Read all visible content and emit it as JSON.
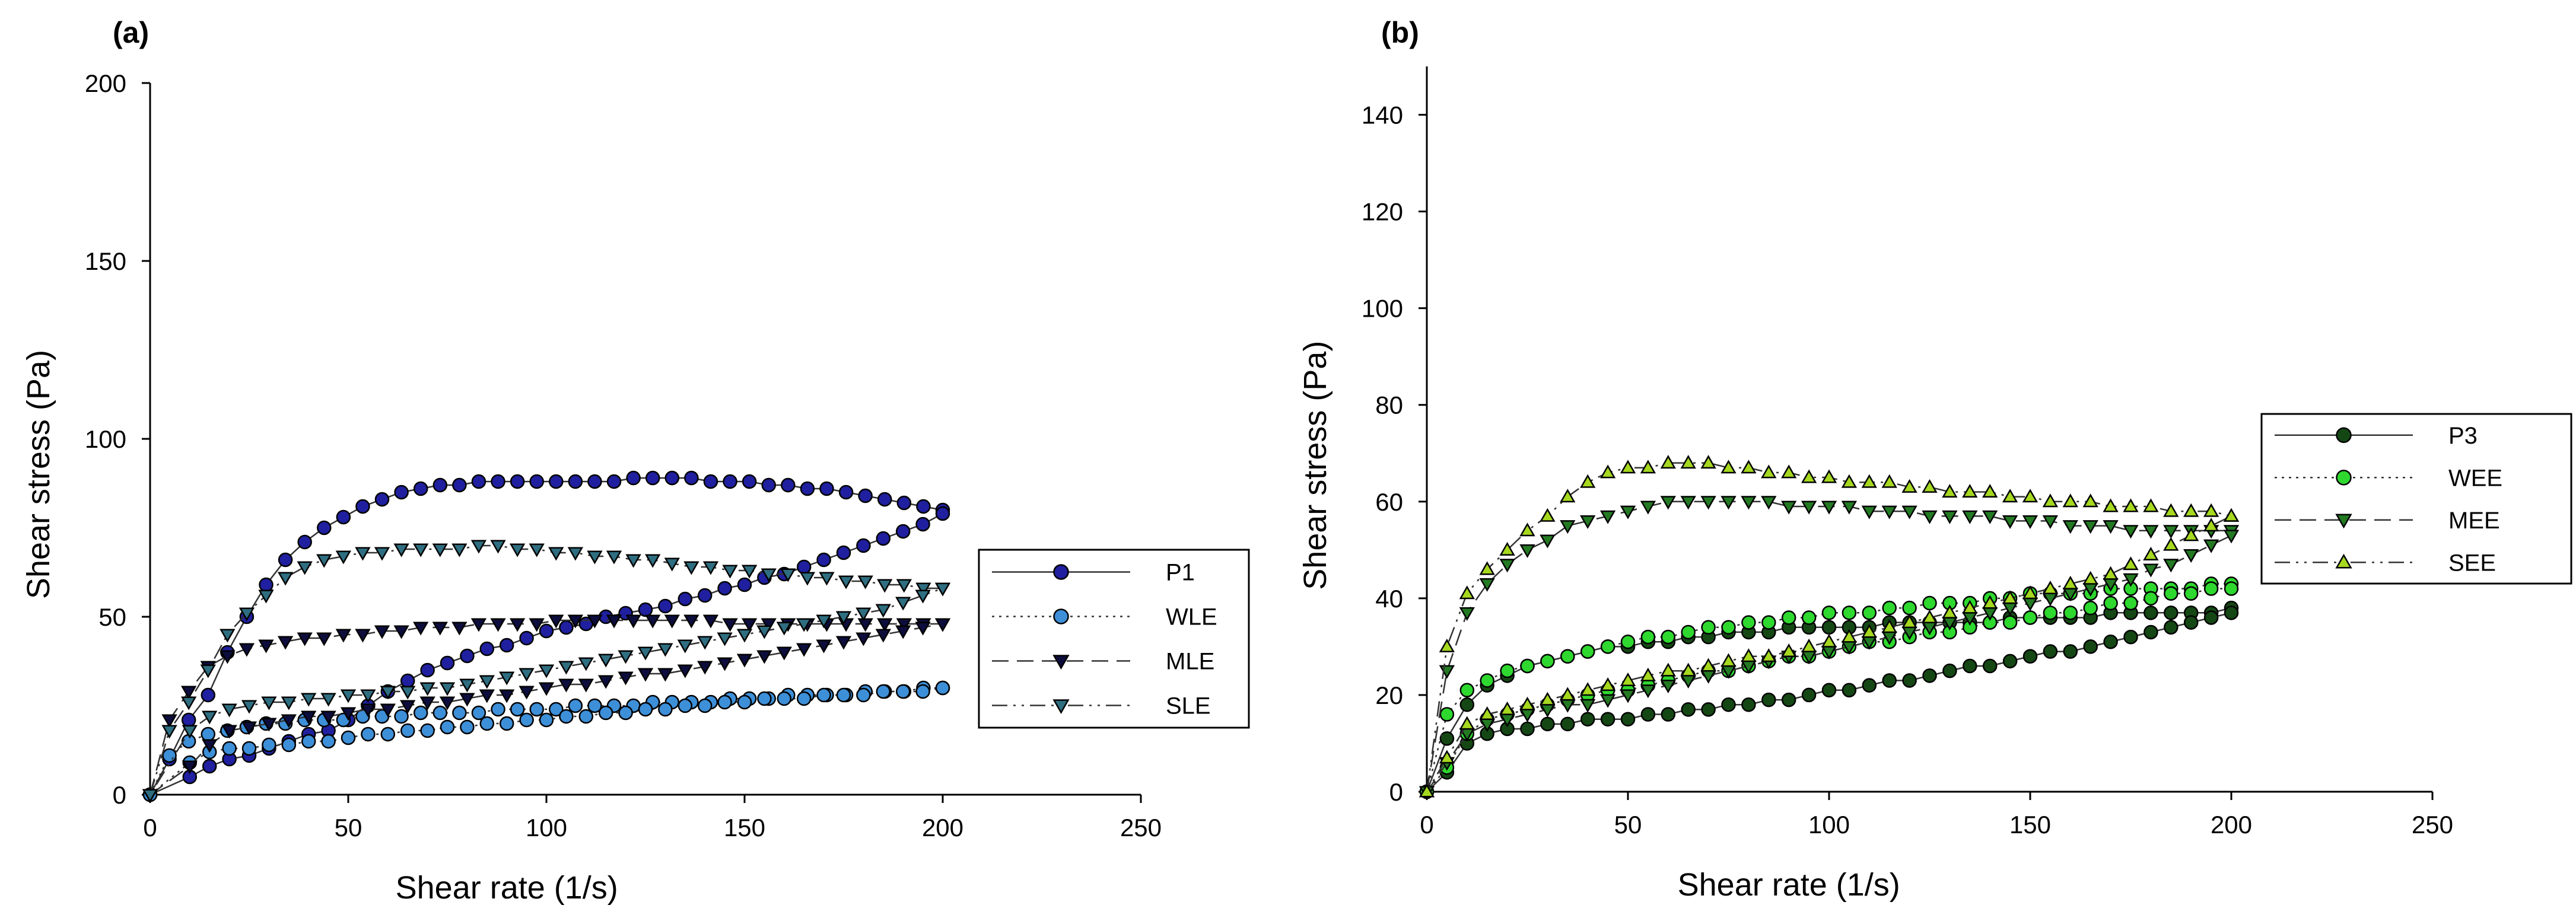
{
  "chart_data": [
    {
      "panel": "(a)",
      "type": "scatter",
      "xlabel": "Shear rate (1/s)",
      "ylabel": "Shear stress (Pa)",
      "xlim": [
        0,
        250
      ],
      "ylim": [
        0,
        200
      ],
      "xticks": [
        "0",
        "50",
        "100",
        "150",
        "200",
        "250"
      ],
      "yticks": [
        "0",
        "50",
        "100",
        "150",
        "200"
      ],
      "legend_position": "right",
      "series": [
        {
          "name": "P1",
          "marker": "circle",
          "color": "#1f1f9f",
          "line": "solid",
          "up_y": [
            0,
            10,
            21,
            28,
            40,
            50,
            59,
            66,
            71,
            75,
            78,
            81,
            83,
            85,
            86,
            87,
            87,
            88,
            88,
            88,
            88,
            88,
            88,
            88,
            88,
            89,
            89,
            89,
            89,
            88,
            88,
            88,
            87,
            87,
            86,
            86,
            85,
            84,
            83,
            82,
            81,
            80
          ],
          "down_y": [
            79,
            76,
            74,
            72,
            70,
            68,
            66,
            64,
            62,
            61,
            59,
            58,
            56,
            55,
            53,
            52,
            51,
            50,
            48,
            47,
            46,
            44,
            42,
            41,
            39,
            37,
            35,
            32,
            29,
            25,
            21,
            18,
            17,
            15,
            13,
            11,
            10,
            8,
            5
          ]
        },
        {
          "name": "WLE",
          "marker": "circle",
          "color": "#3d8fd8",
          "line": "dotted",
          "up_y": [
            0,
            11,
            15,
            17,
            18,
            19,
            20,
            20,
            21,
            21,
            21,
            22,
            22,
            22,
            23,
            23,
            23,
            23,
            24,
            24,
            24,
            24,
            25,
            25,
            25,
            25,
            26,
            26,
            26,
            26,
            27,
            27,
            27,
            28,
            28,
            28,
            28,
            29,
            29,
            29,
            30,
            30
          ],
          "down_y": [
            30,
            29,
            29,
            29,
            28,
            28,
            28,
            27,
            27,
            27,
            26,
            26,
            25,
            25,
            24,
            24,
            23,
            23,
            22,
            22,
            21,
            21,
            20,
            20,
            19,
            19,
            18,
            18,
            17,
            17,
            16,
            15,
            15,
            14,
            14,
            13,
            13,
            12,
            9
          ]
        },
        {
          "name": "MLE",
          "marker": "triangle-down",
          "color": "#0d0d3d",
          "line": "dashed",
          "up_y": [
            0,
            21,
            29,
            36,
            39,
            41,
            42,
            43,
            44,
            44,
            45,
            45,
            46,
            46,
            47,
            47,
            47,
            48,
            48,
            48,
            48,
            49,
            49,
            49,
            49,
            49,
            49,
            49,
            49,
            49,
            48,
            48,
            48,
            48,
            48,
            48,
            48,
            48,
            48,
            48,
            48,
            48
          ],
          "down_y": [
            48,
            47,
            46,
            45,
            44,
            43,
            42,
            41,
            40,
            39,
            38,
            37,
            36,
            35,
            34,
            34,
            33,
            32,
            31,
            31,
            30,
            29,
            28,
            28,
            27,
            26,
            26,
            25,
            24,
            24,
            23,
            22,
            22,
            21,
            20,
            19,
            18,
            14,
            8
          ]
        },
        {
          "name": "SLE",
          "marker": "triangle-down",
          "color": "#2e6e80",
          "line": "dashdotdot",
          "up_y": [
            0,
            18,
            26,
            35,
            45,
            51,
            56,
            61,
            64,
            66,
            67,
            68,
            68,
            69,
            69,
            69,
            69,
            70,
            70,
            69,
            69,
            68,
            68,
            67,
            67,
            66,
            66,
            65,
            64,
            64,
            63,
            63,
            62,
            62,
            61,
            61,
            60,
            60,
            59,
            59,
            58,
            58
          ],
          "down_y": [
            58,
            56,
            54,
            52,
            51,
            50,
            49,
            48,
            47,
            46,
            45,
            44,
            43,
            42,
            41,
            40,
            39,
            38,
            37,
            36,
            35,
            34,
            33,
            32,
            31,
            30,
            30,
            29,
            29,
            28,
            28,
            27,
            27,
            26,
            26,
            25,
            24,
            22,
            18
          ]
        }
      ]
    },
    {
      "panel": "(b)",
      "type": "scatter",
      "xlabel": "Shear rate (1/s)",
      "ylabel": "Shear stress (Pa)",
      "xlim": [
        0,
        250
      ],
      "ylim": [
        0,
        150
      ],
      "xticks": [
        "0",
        "50",
        "100",
        "150",
        "200",
        "250"
      ],
      "yticks": [
        "0",
        "20",
        "40",
        "60",
        "80",
        "100",
        "120",
        "140"
      ],
      "legend_position": "right",
      "series": [
        {
          "name": "P3",
          "marker": "circle",
          "color": "#144714",
          "line": "solid",
          "up_y": [
            0,
            11,
            18,
            22,
            24,
            26,
            27,
            28,
            29,
            30,
            30,
            31,
            31,
            32,
            32,
            33,
            33,
            33,
            34,
            34,
            34,
            34,
            34,
            35,
            35,
            35,
            35,
            35,
            35,
            36,
            36,
            36,
            36,
            36,
            37,
            37,
            37,
            37,
            37,
            37,
            38
          ],
          "down_y": [
            37,
            36,
            35,
            34,
            33,
            32,
            31,
            30,
            29,
            29,
            28,
            27,
            26,
            26,
            25,
            24,
            23,
            23,
            22,
            21,
            21,
            20,
            19,
            19,
            18,
            18,
            17,
            17,
            16,
            16,
            15,
            15,
            15,
            14,
            14,
            13,
            13,
            12,
            10,
            4
          ]
        },
        {
          "name": "WEE",
          "marker": "circle",
          "color": "#2ed82e",
          "line": "dotted",
          "up_y": [
            0,
            16,
            21,
            23,
            25,
            26,
            27,
            28,
            29,
            30,
            31,
            32,
            32,
            33,
            34,
            34,
            35,
            35,
            36,
            36,
            37,
            37,
            37,
            38,
            38,
            39,
            39,
            39,
            40,
            40,
            41,
            41,
            41,
            41,
            42,
            42,
            42,
            42,
            42,
            43,
            43
          ],
          "down_y": [
            42,
            42,
            41,
            41,
            40,
            39,
            39,
            38,
            37,
            37,
            36,
            35,
            35,
            34,
            33,
            33,
            32,
            31,
            31,
            30,
            29,
            28,
            28,
            27,
            26,
            25,
            25,
            24,
            23,
            22,
            21,
            21,
            20,
            19,
            18,
            17,
            16,
            15,
            12,
            5
          ]
        },
        {
          "name": "MEE",
          "marker": "triangle-down",
          "color": "#237a23",
          "line": "dashed",
          "up_y": [
            0,
            25,
            37,
            43,
            47,
            50,
            52,
            55,
            56,
            57,
            58,
            59,
            60,
            60,
            60,
            60,
            60,
            60,
            59,
            59,
            59,
            59,
            58,
            58,
            58,
            57,
            57,
            57,
            57,
            56,
            56,
            56,
            55,
            55,
            55,
            54,
            54,
            54,
            54,
            54,
            54
          ],
          "down_y": [
            53,
            51,
            49,
            47,
            46,
            44,
            43,
            42,
            41,
            40,
            39,
            38,
            37,
            36,
            35,
            34,
            33,
            32,
            31,
            30,
            29,
            28,
            28,
            27,
            26,
            25,
            24,
            23,
            22,
            21,
            20,
            19,
            18,
            18,
            17,
            16,
            15,
            14,
            12,
            6
          ]
        },
        {
          "name": "SEE",
          "marker": "triangle-up",
          "color": "#a6d81f",
          "line": "dashdotdot",
          "up_y": [
            0,
            30,
            41,
            46,
            50,
            54,
            57,
            61,
            64,
            66,
            67,
            67,
            68,
            68,
            68,
            67,
            67,
            66,
            66,
            65,
            65,
            64,
            64,
            64,
            63,
            63,
            62,
            62,
            62,
            61,
            61,
            60,
            60,
            60,
            59,
            59,
            59,
            58,
            58,
            58,
            57
          ],
          "down_y": [
            57,
            55,
            53,
            51,
            49,
            47,
            45,
            44,
            43,
            42,
            41,
            40,
            39,
            38,
            37,
            36,
            35,
            34,
            33,
            32,
            31,
            30,
            29,
            28,
            28,
            27,
            26,
            25,
            25,
            24,
            23,
            22,
            21,
            20,
            19,
            18,
            17,
            16,
            14,
            7
          ]
        }
      ]
    }
  ]
}
